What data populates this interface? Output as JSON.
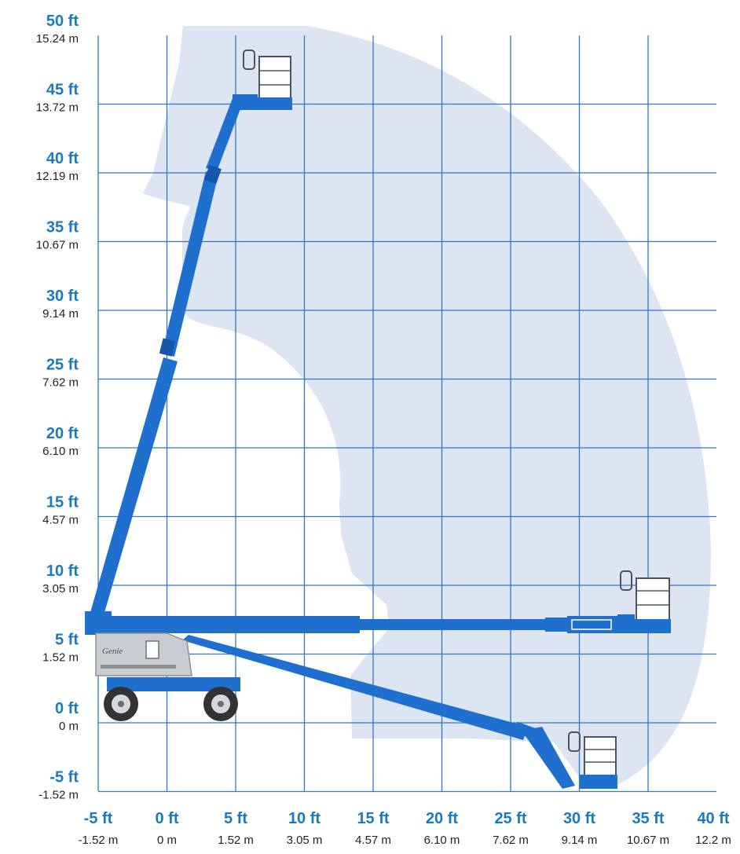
{
  "colors": {
    "boom": "#1f6fcf",
    "boom_dark": "#1558a8",
    "envelope": "#dde5f3",
    "grid": "#2f78c4",
    "ft_label": "#1a7ac0",
    "m_label": "#222222",
    "chassis": "#c9ccd0"
  },
  "y_axis": {
    "ticks": [
      {
        "ft": "50 ft",
        "m": "15.24 m",
        "value_ft": 50
      },
      {
        "ft": "45 ft",
        "m": "13.72 m",
        "value_ft": 45
      },
      {
        "ft": "40 ft",
        "m": "12.19 m",
        "value_ft": 40
      },
      {
        "ft": "35 ft",
        "m": "10.67 m",
        "value_ft": 35
      },
      {
        "ft": "30 ft",
        "m": "9.14 m",
        "value_ft": 30
      },
      {
        "ft": "25 ft",
        "m": "7.62 m",
        "value_ft": 25
      },
      {
        "ft": "20 ft",
        "m": "6.10 m",
        "value_ft": 20
      },
      {
        "ft": "15 ft",
        "m": "4.57 m",
        "value_ft": 15
      },
      {
        "ft": "10 ft",
        "m": "3.05 m",
        "value_ft": 10
      },
      {
        "ft": "5 ft",
        "m": "1.52 m",
        "value_ft": 5
      },
      {
        "ft": "0 ft",
        "m": "0 m",
        "value_ft": 0
      },
      {
        "ft": "-5 ft",
        "m": "-1.52 m",
        "value_ft": -5
      }
    ]
  },
  "x_axis": {
    "ticks": [
      {
        "ft": "-5 ft",
        "m": "-1.52 m",
        "value_ft": -5
      },
      {
        "ft": "0 ft",
        "m": "0 m",
        "value_ft": 0
      },
      {
        "ft": "5 ft",
        "m": "1.52 m",
        "value_ft": 5
      },
      {
        "ft": "10 ft",
        "m": "3.05 m",
        "value_ft": 10
      },
      {
        "ft": "15 ft",
        "m": "4.57 m",
        "value_ft": 15
      },
      {
        "ft": "20 ft",
        "m": "6.10 m",
        "value_ft": 20
      },
      {
        "ft": "25 ft",
        "m": "7.62 m",
        "value_ft": 25
      },
      {
        "ft": "30 ft",
        "m": "9.14 m",
        "value_ft": 30
      },
      {
        "ft": "35 ft",
        "m": "10.67 m",
        "value_ft": 35
      },
      {
        "ft": "40 ft",
        "m": "12.2 m",
        "value_ft": 40
      }
    ]
  },
  "machine": {
    "brand_text": "Genie"
  }
}
